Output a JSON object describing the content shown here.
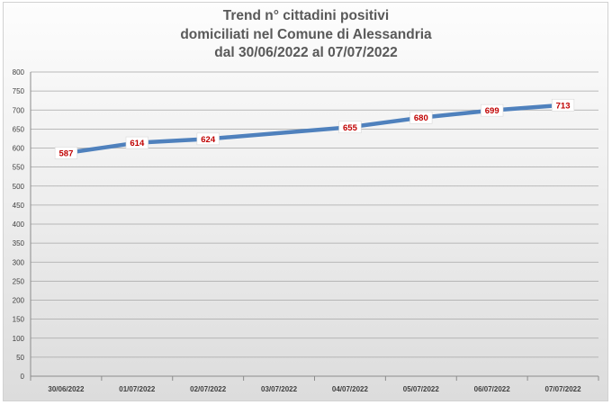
{
  "chart_data": {
    "type": "line",
    "title_lines": [
      "Trend n° cittadini positivi",
      "domiciliati nel Comune di Alessandria",
      "dal 30/06/2022 al 07/07/2022"
    ],
    "categories": [
      "30/06/2022",
      "01/07/2022",
      "02/07/2022",
      "03/07/2022",
      "04/07/2022",
      "05/07/2022",
      "06/07/2022",
      "07/07/2022"
    ],
    "series": [
      {
        "x": [
          "30/06/2022",
          "01/07/2022",
          "02/07/2022",
          "04/07/2022",
          "05/07/2022",
          "06/07/2022",
          "07/07/2022"
        ],
        "values": [
          587,
          614,
          624,
          655,
          680,
          699,
          713
        ]
      }
    ],
    "ylim": [
      0,
      800
    ],
    "ytick_step": 50,
    "grid": true,
    "line_color": "#4f81bd",
    "label_color": "#c00000"
  }
}
